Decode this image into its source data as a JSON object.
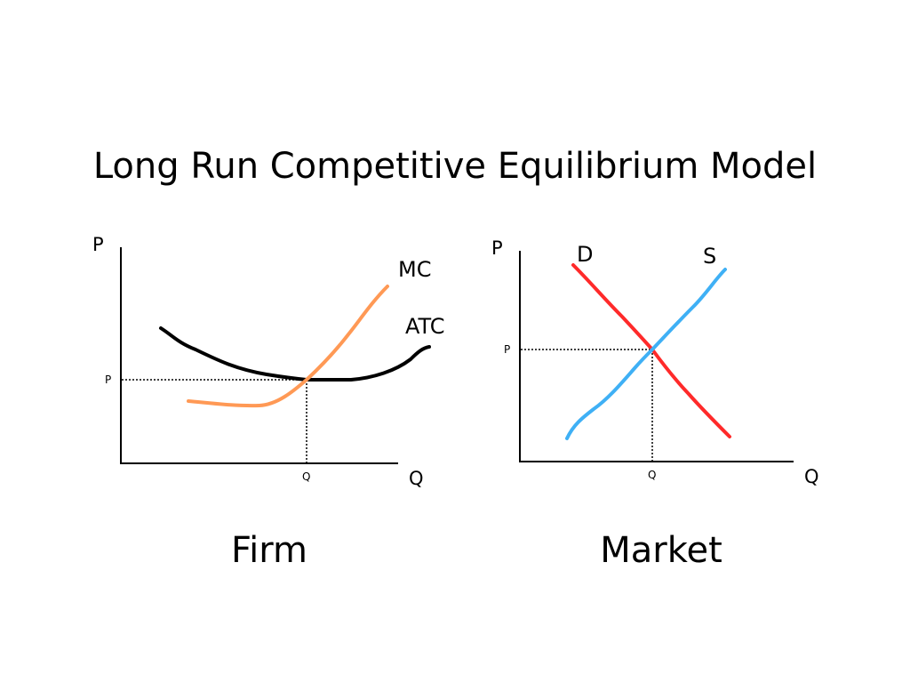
{
  "title": "Long Run Competitive Equilibrium Model",
  "colors": {
    "atc": "#000000",
    "mc": "#ff9955",
    "demand": "#ff2a2a",
    "supply": "#3fb0f5",
    "axis": "#000000"
  },
  "firm": {
    "caption": "Firm",
    "y_axis_label": "P",
    "x_axis_label": "Q",
    "price_tick": "P",
    "quantity_tick": "Q",
    "curves": {
      "mc": "MC",
      "atc": "ATC"
    }
  },
  "market": {
    "caption": "Market",
    "y_axis_label": "P",
    "x_axis_label": "Q",
    "price_tick": "P",
    "quantity_tick": "Q",
    "curves": {
      "demand": "D",
      "supply": "S"
    }
  }
}
